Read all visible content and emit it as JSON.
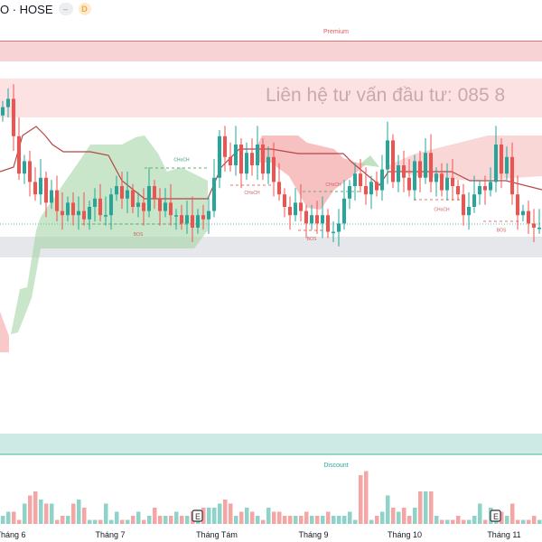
{
  "header": {
    "symbol": "O · HOSE",
    "badge_minus": "–",
    "badge_d": "D"
  },
  "zones": {
    "premium": "Premium",
    "discount": "Discount",
    "watermark": "Liên hệ tư vấn đầu tư:  085 8"
  },
  "structure_labels": [
    {
      "text": "CHoCH",
      "i": 33,
      "p": 71
    },
    {
      "text": "CHoCH",
      "i": 46,
      "p": 63
    },
    {
      "text": "CHoCH",
      "i": 61,
      "p": 65
    },
    {
      "text": "CHoCH",
      "i": 81,
      "p": 59
    },
    {
      "text": "BOS",
      "i": 25,
      "p": 53
    },
    {
      "text": "BOS",
      "i": 57,
      "p": 52
    },
    {
      "text": "BOS",
      "i": 92,
      "p": 54
    }
  ],
  "earnings_marker": "E",
  "colors": {
    "up": "#26a69a",
    "down": "#ef5350",
    "premium": "#f8d3d6",
    "discount": "#cdeae4",
    "cloud_green": "#a5d6a7",
    "cloud_red": "#f4a6a6",
    "trail": "#b54747"
  },
  "chart_data": {
    "type": "candlestick",
    "x_ticks": [
      "Tháng 6",
      "Tháng 7",
      "Tháng Tám",
      "Tháng 9",
      "Tháng 10",
      "Tháng 11"
    ],
    "closes": [
      84,
      86,
      77,
      68,
      71,
      66,
      63,
      67,
      61,
      64,
      59,
      58,
      61,
      58,
      59,
      57,
      60,
      62,
      58,
      58,
      63,
      65,
      62,
      64,
      60,
      61,
      59,
      65,
      62,
      59,
      61,
      58,
      58,
      56,
      58,
      55,
      58,
      57,
      59,
      67,
      77,
      72,
      70,
      75,
      68,
      73,
      70,
      75,
      68,
      72,
      66,
      63,
      60,
      58,
      61,
      59,
      56,
      58,
      56,
      58,
      54,
      54,
      56,
      62,
      65,
      68,
      65,
      63,
      66,
      64,
      69,
      76,
      66,
      70,
      67,
      64,
      71,
      67,
      73,
      66,
      68,
      64,
      67,
      65,
      63,
      58,
      60,
      63,
      65,
      64,
      66,
      75,
      68,
      72,
      63,
      58,
      59,
      56,
      55,
      55
    ],
    "volumes": [
      2,
      3,
      3,
      1,
      5,
      7,
      8,
      6,
      5,
      5,
      1,
      2,
      2,
      5,
      6,
      4,
      1,
      1,
      1,
      5,
      1,
      3,
      1,
      1,
      2,
      3,
      1,
      2,
      4,
      2,
      2,
      2,
      3,
      2,
      2,
      3,
      3,
      4,
      4,
      4,
      5,
      6,
      5,
      2,
      3,
      4,
      3,
      2,
      1,
      4,
      3,
      3,
      2,
      2,
      2,
      2,
      3,
      2,
      2,
      2,
      3,
      2,
      2,
      2,
      3,
      1,
      12,
      13,
      1,
      2,
      3,
      7,
      4,
      3,
      4,
      2,
      4,
      8,
      8,
      8,
      2,
      1,
      1,
      1,
      2,
      1,
      1,
      2,
      5,
      1,
      4,
      2,
      3,
      2,
      5,
      1,
      1,
      1,
      2,
      1
    ],
    "earnings_at": [
      36,
      91
    ]
  }
}
